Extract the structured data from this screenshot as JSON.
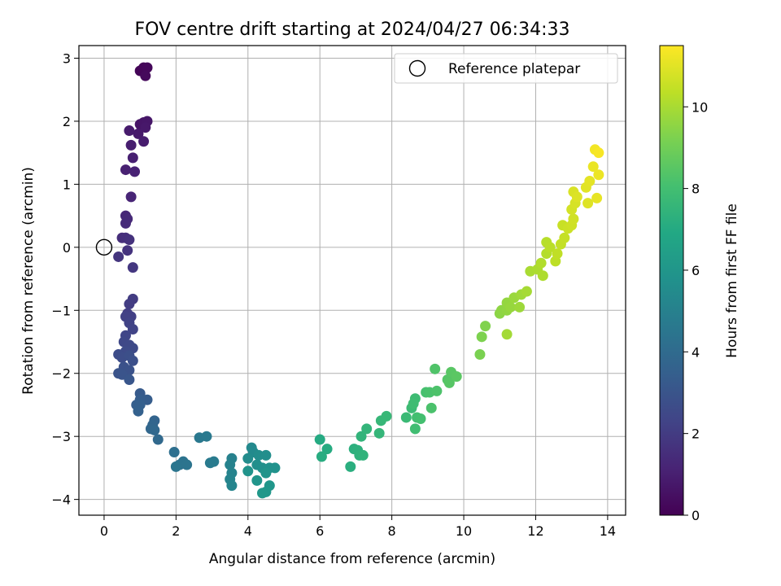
{
  "chart_data": {
    "type": "scatter",
    "title": "FOV centre drift starting at 2024/04/27 06:34:33",
    "xlabel": "Angular distance from reference (arcmin)",
    "ylabel": "Rotation from reference (arcmin)",
    "xlim": [
      -0.7,
      14.5
    ],
    "ylim": [
      -4.25,
      3.2
    ],
    "xticks": [
      0,
      2,
      4,
      6,
      8,
      10,
      12,
      14
    ],
    "yticks": [
      -4,
      -3,
      -2,
      -1,
      0,
      1,
      2,
      3
    ],
    "grid": true,
    "legend": {
      "placement": "top-right",
      "entries": [
        "Reference platepar"
      ]
    },
    "reference_point": {
      "x": 0,
      "y": 0,
      "name": "Reference platepar"
    },
    "colorbar": {
      "label": "Hours from first FF file",
      "range": [
        0,
        11.5
      ],
      "ticks": [
        0,
        2,
        4,
        6,
        8,
        10
      ],
      "colormap": "viridis"
    },
    "points": [
      {
        "x": 1.0,
        "y": 2.8,
        "h": 0.1
      },
      {
        "x": 1.1,
        "y": 2.85,
        "h": 0.15
      },
      {
        "x": 1.2,
        "y": 2.85,
        "h": 0.2
      },
      {
        "x": 1.15,
        "y": 2.72,
        "h": 0.25
      },
      {
        "x": 1.0,
        "y": 1.95,
        "h": 0.6
      },
      {
        "x": 1.1,
        "y": 1.98,
        "h": 0.65
      },
      {
        "x": 1.2,
        "y": 2.0,
        "h": 0.7
      },
      {
        "x": 1.15,
        "y": 1.9,
        "h": 0.75
      },
      {
        "x": 0.95,
        "y": 1.8,
        "h": 0.8
      },
      {
        "x": 0.7,
        "y": 1.85,
        "h": 0.85
      },
      {
        "x": 1.1,
        "y": 1.68,
        "h": 0.9
      },
      {
        "x": 0.75,
        "y": 1.62,
        "h": 0.95
      },
      {
        "x": 0.8,
        "y": 1.42,
        "h": 1.0
      },
      {
        "x": 0.6,
        "y": 1.23,
        "h": 1.05
      },
      {
        "x": 0.85,
        "y": 1.2,
        "h": 1.1
      },
      {
        "x": 0.75,
        "y": 0.8,
        "h": 1.2
      },
      {
        "x": 0.6,
        "y": 0.5,
        "h": 1.3
      },
      {
        "x": 0.65,
        "y": 0.45,
        "h": 1.35
      },
      {
        "x": 0.6,
        "y": 0.38,
        "h": 1.4
      },
      {
        "x": 0.5,
        "y": 0.15,
        "h": 1.5
      },
      {
        "x": 0.6,
        "y": 0.15,
        "h": 1.55
      },
      {
        "x": 0.7,
        "y": 0.12,
        "h": 1.6
      },
      {
        "x": 0.65,
        "y": -0.05,
        "h": 1.7
      },
      {
        "x": 0.4,
        "y": -0.15,
        "h": 1.75
      },
      {
        "x": 0.8,
        "y": -0.32,
        "h": 1.85
      },
      {
        "x": 0.8,
        "y": -0.82,
        "h": 2.0
      },
      {
        "x": 0.7,
        "y": -0.9,
        "h": 2.05
      },
      {
        "x": 0.65,
        "y": -1.05,
        "h": 2.1
      },
      {
        "x": 0.75,
        "y": -1.1,
        "h": 2.15
      },
      {
        "x": 0.6,
        "y": -1.1,
        "h": 2.2
      },
      {
        "x": 0.7,
        "y": -1.2,
        "h": 2.25
      },
      {
        "x": 0.8,
        "y": -1.3,
        "h": 2.3
      },
      {
        "x": 0.6,
        "y": -1.4,
        "h": 2.4
      },
      {
        "x": 0.55,
        "y": -1.5,
        "h": 2.45
      },
      {
        "x": 0.7,
        "y": -1.55,
        "h": 2.5
      },
      {
        "x": 0.8,
        "y": -1.6,
        "h": 2.55
      },
      {
        "x": 0.6,
        "y": -1.65,
        "h": 2.6
      },
      {
        "x": 0.4,
        "y": -1.7,
        "h": 2.65
      },
      {
        "x": 0.5,
        "y": -1.75,
        "h": 2.7
      },
      {
        "x": 0.7,
        "y": -1.72,
        "h": 2.75
      },
      {
        "x": 0.8,
        "y": -1.8,
        "h": 2.8
      },
      {
        "x": 0.55,
        "y": -1.9,
        "h": 2.85
      },
      {
        "x": 0.7,
        "y": -1.95,
        "h": 2.9
      },
      {
        "x": 0.4,
        "y": -2.0,
        "h": 2.95
      },
      {
        "x": 0.5,
        "y": -2.02,
        "h": 3.0
      },
      {
        "x": 0.7,
        "y": -2.1,
        "h": 3.05
      },
      {
        "x": 1.0,
        "y": -2.32,
        "h": 3.3
      },
      {
        "x": 1.2,
        "y": -2.42,
        "h": 3.35
      },
      {
        "x": 1.0,
        "y": -2.42,
        "h": 3.4
      },
      {
        "x": 0.9,
        "y": -2.5,
        "h": 3.45
      },
      {
        "x": 1.0,
        "y": -2.5,
        "h": 3.5
      },
      {
        "x": 0.95,
        "y": -2.6,
        "h": 3.55
      },
      {
        "x": 1.4,
        "y": -2.75,
        "h": 3.7
      },
      {
        "x": 1.35,
        "y": -2.82,
        "h": 3.75
      },
      {
        "x": 1.3,
        "y": -2.88,
        "h": 3.8
      },
      {
        "x": 1.4,
        "y": -2.9,
        "h": 3.85
      },
      {
        "x": 1.5,
        "y": -3.05,
        "h": 3.9
      },
      {
        "x": 1.95,
        "y": -3.25,
        "h": 4.2
      },
      {
        "x": 2.1,
        "y": -3.45,
        "h": 4.3
      },
      {
        "x": 2.2,
        "y": -3.4,
        "h": 4.35
      },
      {
        "x": 2.3,
        "y": -3.45,
        "h": 4.4
      },
      {
        "x": 2.0,
        "y": -3.48,
        "h": 4.45
      },
      {
        "x": 2.65,
        "y": -3.02,
        "h": 4.6
      },
      {
        "x": 2.85,
        "y": -3.0,
        "h": 4.65
      },
      {
        "x": 2.95,
        "y": -3.42,
        "h": 4.7
      },
      {
        "x": 3.05,
        "y": -3.4,
        "h": 4.75
      },
      {
        "x": 3.55,
        "y": -3.35,
        "h": 5.0
      },
      {
        "x": 3.5,
        "y": -3.45,
        "h": 5.05
      },
      {
        "x": 3.55,
        "y": -3.58,
        "h": 5.1
      },
      {
        "x": 3.5,
        "y": -3.68,
        "h": 5.15
      },
      {
        "x": 3.55,
        "y": -3.78,
        "h": 5.2
      },
      {
        "x": 4.1,
        "y": -3.18,
        "h": 5.4
      },
      {
        "x": 4.15,
        "y": -3.25,
        "h": 5.45
      },
      {
        "x": 4.0,
        "y": -3.35,
        "h": 5.5
      },
      {
        "x": 4.3,
        "y": -3.3,
        "h": 5.55
      },
      {
        "x": 4.5,
        "y": -3.3,
        "h": 5.6
      },
      {
        "x": 4.25,
        "y": -3.45,
        "h": 5.65
      },
      {
        "x": 4.4,
        "y": -3.5,
        "h": 5.7
      },
      {
        "x": 4.6,
        "y": -3.5,
        "h": 5.75
      },
      {
        "x": 4.75,
        "y": -3.5,
        "h": 5.8
      },
      {
        "x": 4.0,
        "y": -3.55,
        "h": 5.85
      },
      {
        "x": 4.5,
        "y": -3.58,
        "h": 5.9
      },
      {
        "x": 4.25,
        "y": -3.7,
        "h": 5.95
      },
      {
        "x": 4.6,
        "y": -3.78,
        "h": 6.0
      },
      {
        "x": 4.5,
        "y": -3.88,
        "h": 6.05
      },
      {
        "x": 4.4,
        "y": -3.9,
        "h": 6.1
      },
      {
        "x": 6.0,
        "y": -3.05,
        "h": 7.0
      },
      {
        "x": 6.2,
        "y": -3.2,
        "h": 7.05
      },
      {
        "x": 6.05,
        "y": -3.32,
        "h": 7.1
      },
      {
        "x": 6.85,
        "y": -3.48,
        "h": 7.2
      },
      {
        "x": 6.95,
        "y": -3.2,
        "h": 7.25
      },
      {
        "x": 7.05,
        "y": -3.22,
        "h": 7.3
      },
      {
        "x": 7.1,
        "y": -3.3,
        "h": 7.35
      },
      {
        "x": 7.2,
        "y": -3.3,
        "h": 7.4
      },
      {
        "x": 7.15,
        "y": -3.0,
        "h": 7.45
      },
      {
        "x": 7.3,
        "y": -2.88,
        "h": 7.5
      },
      {
        "x": 7.65,
        "y": -2.95,
        "h": 7.55
      },
      {
        "x": 7.7,
        "y": -2.75,
        "h": 7.6
      },
      {
        "x": 7.85,
        "y": -2.68,
        "h": 7.65
      },
      {
        "x": 8.4,
        "y": -2.7,
        "h": 7.75
      },
      {
        "x": 8.55,
        "y": -2.55,
        "h": 7.8
      },
      {
        "x": 8.65,
        "y": -2.4,
        "h": 7.85
      },
      {
        "x": 8.6,
        "y": -2.48,
        "h": 7.9
      },
      {
        "x": 8.65,
        "y": -2.88,
        "h": 7.95
      },
      {
        "x": 8.7,
        "y": -2.7,
        "h": 8.0
      },
      {
        "x": 8.8,
        "y": -2.72,
        "h": 8.05
      },
      {
        "x": 8.95,
        "y": -2.3,
        "h": 8.1
      },
      {
        "x": 9.05,
        "y": -2.3,
        "h": 8.15
      },
      {
        "x": 9.1,
        "y": -2.55,
        "h": 8.2
      },
      {
        "x": 9.25,
        "y": -2.28,
        "h": 8.25
      },
      {
        "x": 9.2,
        "y": -1.93,
        "h": 8.3
      },
      {
        "x": 9.55,
        "y": -2.1,
        "h": 8.4
      },
      {
        "x": 9.6,
        "y": -2.15,
        "h": 8.45
      },
      {
        "x": 9.65,
        "y": -1.98,
        "h": 8.5
      },
      {
        "x": 9.8,
        "y": -2.05,
        "h": 8.55
      },
      {
        "x": 10.45,
        "y": -1.7,
        "h": 9.2
      },
      {
        "x": 10.5,
        "y": -1.42,
        "h": 9.25
      },
      {
        "x": 10.6,
        "y": -1.25,
        "h": 9.3
      },
      {
        "x": 11.0,
        "y": -1.05,
        "h": 9.5
      },
      {
        "x": 11.05,
        "y": -1.0,
        "h": 9.55
      },
      {
        "x": 11.2,
        "y": -1.0,
        "h": 9.6
      },
      {
        "x": 11.2,
        "y": -0.88,
        "h": 9.65
      },
      {
        "x": 11.3,
        "y": -0.95,
        "h": 9.7
      },
      {
        "x": 11.4,
        "y": -0.8,
        "h": 9.75
      },
      {
        "x": 11.55,
        "y": -0.95,
        "h": 9.8
      },
      {
        "x": 11.6,
        "y": -0.75,
        "h": 9.85
      },
      {
        "x": 11.2,
        "y": -1.38,
        "h": 9.9
      },
      {
        "x": 11.75,
        "y": -0.7,
        "h": 9.95
      },
      {
        "x": 11.85,
        "y": -0.38,
        "h": 10.0
      },
      {
        "x": 12.05,
        "y": -0.35,
        "h": 10.05
      },
      {
        "x": 12.2,
        "y": -0.45,
        "h": 10.1
      },
      {
        "x": 12.15,
        "y": -0.25,
        "h": 10.15
      },
      {
        "x": 12.3,
        "y": -0.1,
        "h": 10.2
      },
      {
        "x": 12.3,
        "y": 0.08,
        "h": 10.25
      },
      {
        "x": 12.4,
        "y": 0.0,
        "h": 10.3
      },
      {
        "x": 12.55,
        "y": -0.22,
        "h": 10.35
      },
      {
        "x": 12.6,
        "y": -0.1,
        "h": 10.4
      },
      {
        "x": 12.7,
        "y": 0.05,
        "h": 10.45
      },
      {
        "x": 12.8,
        "y": 0.15,
        "h": 10.5
      },
      {
        "x": 12.75,
        "y": 0.35,
        "h": 10.55
      },
      {
        "x": 12.9,
        "y": 0.3,
        "h": 10.6
      },
      {
        "x": 13.0,
        "y": 0.35,
        "h": 10.65
      },
      {
        "x": 13.05,
        "y": 0.45,
        "h": 10.7
      },
      {
        "x": 13.0,
        "y": 0.6,
        "h": 10.75
      },
      {
        "x": 13.1,
        "y": 0.7,
        "h": 10.8
      },
      {
        "x": 13.05,
        "y": 0.88,
        "h": 10.85
      },
      {
        "x": 13.15,
        "y": 0.8,
        "h": 10.9
      },
      {
        "x": 13.45,
        "y": 0.7,
        "h": 10.95
      },
      {
        "x": 13.4,
        "y": 0.95,
        "h": 11.0
      },
      {
        "x": 13.5,
        "y": 1.05,
        "h": 11.05
      },
      {
        "x": 13.7,
        "y": 0.78,
        "h": 11.1
      },
      {
        "x": 13.6,
        "y": 1.28,
        "h": 11.15
      },
      {
        "x": 13.75,
        "y": 1.15,
        "h": 11.2
      },
      {
        "x": 13.65,
        "y": 1.55,
        "h": 11.3
      },
      {
        "x": 13.75,
        "y": 1.5,
        "h": 11.4
      }
    ]
  }
}
